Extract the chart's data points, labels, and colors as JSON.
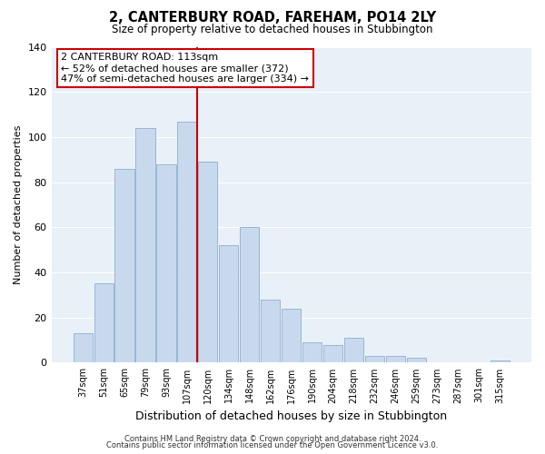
{
  "title": "2, CANTERBURY ROAD, FAREHAM, PO14 2LY",
  "subtitle": "Size of property relative to detached houses in Stubbington",
  "xlabel": "Distribution of detached houses by size in Stubbington",
  "ylabel": "Number of detached properties",
  "bar_labels": [
    "37sqm",
    "51sqm",
    "65sqm",
    "79sqm",
    "93sqm",
    "107sqm",
    "120sqm",
    "134sqm",
    "148sqm",
    "162sqm",
    "176sqm",
    "190sqm",
    "204sqm",
    "218sqm",
    "232sqm",
    "246sqm",
    "259sqm",
    "273sqm",
    "287sqm",
    "301sqm",
    "315sqm"
  ],
  "bar_values": [
    13,
    35,
    86,
    104,
    88,
    107,
    89,
    52,
    60,
    28,
    24,
    9,
    8,
    11,
    3,
    3,
    2,
    0,
    0,
    0,
    1
  ],
  "bar_color": "#c8d9ee",
  "bar_edge_color": "#9ab5d4",
  "highlight_index": 6,
  "highlight_color": "#cc0000",
  "ylim": [
    0,
    140
  ],
  "yticks": [
    0,
    20,
    40,
    60,
    80,
    100,
    120,
    140
  ],
  "annotation_title": "2 CANTERBURY ROAD: 113sqm",
  "annotation_line1": "← 52% of detached houses are smaller (372)",
  "annotation_line2": "47% of semi-detached houses are larger (334) →",
  "annotation_box_color": "#ffffff",
  "annotation_box_edge": "#cc0000",
  "footer1": "Contains HM Land Registry data © Crown copyright and database right 2024.",
  "footer2": "Contains public sector information licensed under the Open Government Licence v3.0.",
  "background_color": "#ffffff",
  "plot_bg_color": "#e8f0f8",
  "grid_color": "#ffffff"
}
